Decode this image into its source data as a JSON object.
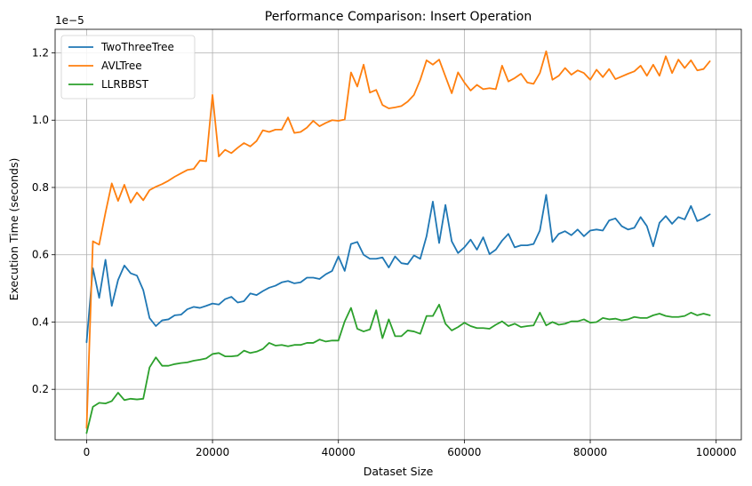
{
  "chart_data": {
    "type": "line",
    "title": "Performance Comparison: Insert Operation",
    "xlabel": "Dataset Size",
    "ylabel": "Execution Time (seconds)",
    "y_offset_label": "1e−5",
    "xlim": [
      -5000,
      104000
    ],
    "ylim": [
      5e-07,
      1.27e-05
    ],
    "xticks": [
      0,
      20000,
      40000,
      60000,
      80000,
      100000
    ],
    "xtick_labels": [
      "0",
      "20000",
      "40000",
      "60000",
      "80000",
      "100000"
    ],
    "yticks": [
      2e-06,
      4e-06,
      6e-06,
      8e-06,
      1e-05,
      1.2e-05
    ],
    "ytick_labels": [
      "0.2",
      "0.4",
      "0.6",
      "0.8",
      "1.0",
      "1.2"
    ],
    "grid": true,
    "legend_position": "top-left",
    "x": [
      0,
      1000,
      2000,
      3000,
      4000,
      5000,
      6000,
      7000,
      8000,
      9000,
      10000,
      11000,
      12000,
      13000,
      14000,
      15000,
      16000,
      17000,
      18000,
      19000,
      20000,
      21000,
      22000,
      23000,
      24000,
      25000,
      26000,
      27000,
      28000,
      29000,
      30000,
      31000,
      32000,
      33000,
      34000,
      35000,
      36000,
      37000,
      38000,
      39000,
      40000,
      41000,
      42000,
      43000,
      44000,
      45000,
      46000,
      47000,
      48000,
      49000,
      50000,
      51000,
      52000,
      53000,
      54000,
      55000,
      56000,
      57000,
      58000,
      59000,
      60000,
      61000,
      62000,
      63000,
      64000,
      65000,
      66000,
      67000,
      68000,
      69000,
      70000,
      71000,
      72000,
      73000,
      74000,
      75000,
      76000,
      77000,
      78000,
      79000,
      80000,
      81000,
      82000,
      83000,
      84000,
      85000,
      86000,
      87000,
      88000,
      89000,
      90000,
      91000,
      92000,
      93000,
      94000,
      95000,
      96000,
      97000,
      98000,
      99000
    ],
    "series": [
      {
        "name": "TwoThreeTree",
        "color": "#1f77b4",
        "values": [
          3.4e-06,
          5.6e-06,
          4.72e-06,
          5.85e-06,
          4.48e-06,
          5.25e-06,
          5.68e-06,
          5.45e-06,
          5.38e-06,
          4.95e-06,
          4.12e-06,
          3.88e-06,
          4.05e-06,
          4.08e-06,
          4.2e-06,
          4.22e-06,
          4.38e-06,
          4.45e-06,
          4.42e-06,
          4.48e-06,
          4.55e-06,
          4.52e-06,
          4.68e-06,
          4.75e-06,
          4.58e-06,
          4.62e-06,
          4.85e-06,
          4.8e-06,
          4.92e-06,
          5.02e-06,
          5.08e-06,
          5.18e-06,
          5.22e-06,
          5.15e-06,
          5.18e-06,
          5.32e-06,
          5.32e-06,
          5.28e-06,
          5.42e-06,
          5.52e-06,
          5.95e-06,
          5.52e-06,
          6.32e-06,
          6.38e-06,
          6e-06,
          5.88e-06,
          5.88e-06,
          5.92e-06,
          5.62e-06,
          5.95e-06,
          5.75e-06,
          5.72e-06,
          5.98e-06,
          5.88e-06,
          6.55e-06,
          7.58e-06,
          6.35e-06,
          7.48e-06,
          6.4e-06,
          6.05e-06,
          6.22e-06,
          6.45e-06,
          6.15e-06,
          6.52e-06,
          6.02e-06,
          6.15e-06,
          6.42e-06,
          6.62e-06,
          6.22e-06,
          6.28e-06,
          6.28e-06,
          6.32e-06,
          6.72e-06,
          7.78e-06,
          6.38e-06,
          6.62e-06,
          6.7e-06,
          6.58e-06,
          6.75e-06,
          6.55e-06,
          6.72e-06,
          6.75e-06,
          6.72e-06,
          7.02e-06,
          7.08e-06,
          6.85e-06,
          6.75e-06,
          6.8e-06,
          7.12e-06,
          6.85e-06,
          6.25e-06,
          6.95e-06,
          7.15e-06,
          6.92e-06,
          7.12e-06,
          7.05e-06,
          7.45e-06,
          7e-06,
          7.08e-06,
          7.2e-06
        ]
      },
      {
        "name": "AVLTree",
        "color": "#ff7f0e",
        "values": [
          8.5e-07,
          6.4e-06,
          6.3e-06,
          7.25e-06,
          8.12e-06,
          7.6e-06,
          8.08e-06,
          7.55e-06,
          7.85e-06,
          7.62e-06,
          7.92e-06,
          8.02e-06,
          8.1e-06,
          8.2e-06,
          8.32e-06,
          8.42e-06,
          8.52e-06,
          8.55e-06,
          8.8e-06,
          8.78e-06,
          1.075e-05,
          8.92e-06,
          9.12e-06,
          9.02e-06,
          9.18e-06,
          9.32e-06,
          9.22e-06,
          9.38e-06,
          9.7e-06,
          9.65e-06,
          9.72e-06,
          9.72e-06,
          1.008e-05,
          9.62e-06,
          9.65e-06,
          9.78e-06,
          9.98e-06,
          9.82e-06,
          9.92e-06,
          1e-05,
          9.98e-06,
          1.002e-05,
          1.142e-05,
          1.1e-05,
          1.165e-05,
          1.082e-05,
          1.09e-05,
          1.045e-05,
          1.035e-05,
          1.038e-05,
          1.042e-05,
          1.055e-05,
          1.075e-05,
          1.12e-05,
          1.178e-05,
          1.165e-05,
          1.18e-05,
          1.13e-05,
          1.08e-05,
          1.142e-05,
          1.112e-05,
          1.088e-05,
          1.105e-05,
          1.092e-05,
          1.095e-05,
          1.092e-05,
          1.162e-05,
          1.115e-05,
          1.125e-05,
          1.138e-05,
          1.112e-05,
          1.108e-05,
          1.14e-05,
          1.205e-05,
          1.12e-05,
          1.132e-05,
          1.155e-05,
          1.135e-05,
          1.148e-05,
          1.14e-05,
          1.12e-05,
          1.15e-05,
          1.128e-05,
          1.152e-05,
          1.122e-05,
          1.13e-05,
          1.138e-05,
          1.145e-05,
          1.162e-05,
          1.132e-05,
          1.165e-05,
          1.132e-05,
          1.19e-05,
          1.14e-05,
          1.18e-05,
          1.155e-05,
          1.178e-05,
          1.148e-05,
          1.152e-05,
          1.175e-05
        ]
      },
      {
        "name": "LLRBBST",
        "color": "#2ca02c",
        "values": [
          7e-07,
          1.48e-06,
          1.6e-06,
          1.58e-06,
          1.65e-06,
          1.9e-06,
          1.68e-06,
          1.72e-06,
          1.7e-06,
          1.72e-06,
          2.65e-06,
          2.95e-06,
          2.7e-06,
          2.7e-06,
          2.75e-06,
          2.78e-06,
          2.8e-06,
          2.85e-06,
          2.88e-06,
          2.92e-06,
          3.05e-06,
          3.08e-06,
          2.98e-06,
          2.98e-06,
          3e-06,
          3.15e-06,
          3.08e-06,
          3.12e-06,
          3.2e-06,
          3.38e-06,
          3.3e-06,
          3.32e-06,
          3.28e-06,
          3.32e-06,
          3.32e-06,
          3.38e-06,
          3.38e-06,
          3.48e-06,
          3.42e-06,
          3.45e-06,
          3.45e-06,
          4.02e-06,
          4.42e-06,
          3.8e-06,
          3.72e-06,
          3.78e-06,
          4.35e-06,
          3.52e-06,
          4.08e-06,
          3.58e-06,
          3.58e-06,
          3.75e-06,
          3.72e-06,
          3.65e-06,
          4.18e-06,
          4.18e-06,
          4.52e-06,
          3.95e-06,
          3.75e-06,
          3.85e-06,
          3.98e-06,
          3.88e-06,
          3.82e-06,
          3.82e-06,
          3.8e-06,
          3.92e-06,
          4.02e-06,
          3.88e-06,
          3.95e-06,
          3.85e-06,
          3.88e-06,
          3.9e-06,
          4.28e-06,
          3.9e-06,
          4e-06,
          3.92e-06,
          3.95e-06,
          4.02e-06,
          4.02e-06,
          4.08e-06,
          3.98e-06,
          4e-06,
          4.12e-06,
          4.08e-06,
          4.1e-06,
          4.05e-06,
          4.08e-06,
          4.15e-06,
          4.12e-06,
          4.12e-06,
          4.2e-06,
          4.25e-06,
          4.18e-06,
          4.15e-06,
          4.15e-06,
          4.18e-06,
          4.28e-06,
          4.2e-06,
          4.25e-06,
          4.2e-06
        ]
      }
    ]
  }
}
